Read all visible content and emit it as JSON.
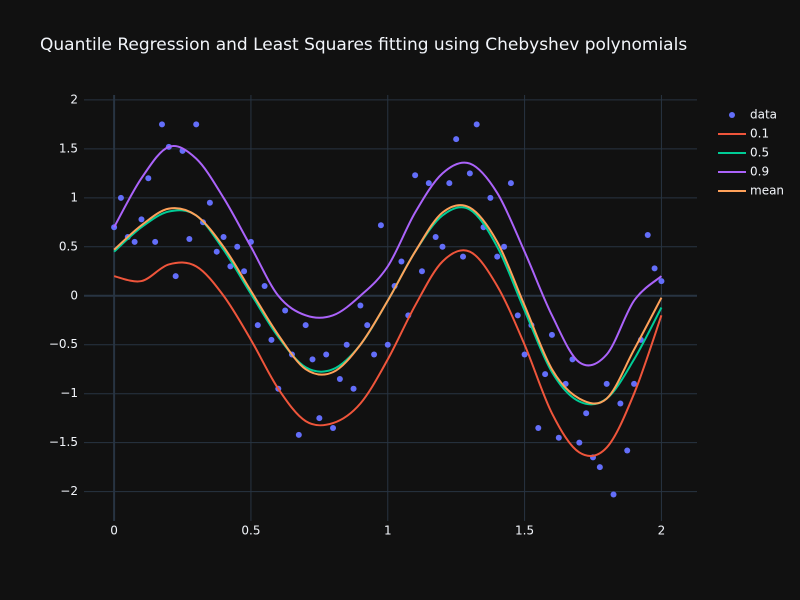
{
  "chart_data": {
    "type": "scatter",
    "title": "Quantile Regression and Least Squares fitting using Chebyshev polynomials",
    "xlim": [
      -0.11,
      2.13
    ],
    "ylim": [
      -2.3,
      2.05
    ],
    "xticks": [
      0,
      0.5,
      1,
      1.5,
      2
    ],
    "yticks": [
      {
        "value": -2,
        "label": "−2"
      },
      {
        "value": -1.5,
        "label": "−1.5"
      },
      {
        "value": -1,
        "label": "−1"
      },
      {
        "value": -0.5,
        "label": "−0.5"
      },
      0,
      0.5,
      1,
      1.5,
      2
    ],
    "grid": true,
    "legend": "outside-right",
    "series": [
      {
        "name": "data",
        "mode": "markers",
        "color": "#636efa",
        "x": [
          0,
          0.025,
          0.05,
          0.075,
          0.1,
          0.125,
          0.15,
          0.175,
          0.2,
          0.225,
          0.25,
          0.275,
          0.3,
          0.325,
          0.35,
          0.375,
          0.4,
          0.425,
          0.45,
          0.475,
          0.5,
          0.525,
          0.55,
          0.575,
          0.6,
          0.625,
          0.65,
          0.675,
          0.7,
          0.725,
          0.75,
          0.775,
          0.8,
          0.825,
          0.85,
          0.875,
          0.9,
          0.925,
          0.95,
          0.975,
          1,
          1.025,
          1.05,
          1.075,
          1.1,
          1.125,
          1.15,
          1.175,
          1.2,
          1.225,
          1.25,
          1.275,
          1.3,
          1.325,
          1.35,
          1.375,
          1.4,
          1.425,
          1.45,
          1.475,
          1.5,
          1.525,
          1.55,
          1.575,
          1.6,
          1.625,
          1.65,
          1.675,
          1.7,
          1.725,
          1.75,
          1.775,
          1.8,
          1.825,
          1.85,
          1.875,
          1.9,
          1.925,
          1.95,
          1.975,
          2
        ],
        "y": [
          0.7,
          1.0,
          0.6,
          0.55,
          0.78,
          1.2,
          0.55,
          1.75,
          1.52,
          0.2,
          1.48,
          0.58,
          1.75,
          0.75,
          0.95,
          0.45,
          0.6,
          0.3,
          0.5,
          0.25,
          0.55,
          -0.3,
          0.1,
          -0.45,
          -0.95,
          -0.15,
          -0.6,
          -1.42,
          -0.3,
          -0.65,
          -1.25,
          -0.6,
          -1.35,
          -0.85,
          -0.5,
          -0.95,
          -0.1,
          -0.3,
          -0.6,
          0.72,
          -0.5,
          0.1,
          0.35,
          -0.2,
          1.23,
          0.25,
          1.15,
          0.6,
          0.5,
          1.15,
          1.6,
          0.4,
          1.25,
          1.75,
          0.7,
          1.0,
          0.4,
          0.5,
          1.15,
          -0.2,
          -0.6,
          -0.3,
          -1.35,
          -0.8,
          -0.4,
          -1.45,
          -0.9,
          -0.65,
          -1.5,
          -1.2,
          -1.65,
          -1.75,
          -0.9,
          -2.03,
          -1.1,
          -1.58,
          -0.9,
          -0.45,
          0.62,
          0.28,
          0.15
        ]
      },
      {
        "name": "0.1",
        "mode": "lines",
        "color": "#EF553B",
        "x": [
          0,
          0.1,
          0.2,
          0.3,
          0.4,
          0.5,
          0.6,
          0.7,
          0.8,
          0.9,
          1,
          1.1,
          1.2,
          1.3,
          1.4,
          1.5,
          1.6,
          1.7,
          1.8,
          1.9,
          2
        ],
        "y": [
          0.2,
          0.15,
          0.32,
          0.3,
          0.0,
          -0.45,
          -0.95,
          -1.28,
          -1.3,
          -1.1,
          -0.65,
          -0.1,
          0.35,
          0.45,
          0.1,
          -0.5,
          -1.2,
          -1.6,
          -1.55,
          -1.0,
          -0.2
        ]
      },
      {
        "name": "0.5",
        "mode": "lines",
        "color": "#00cc96",
        "x": [
          0,
          0.1,
          0.2,
          0.3,
          0.4,
          0.5,
          0.6,
          0.7,
          0.8,
          0.9,
          1,
          1.1,
          1.2,
          1.3,
          1.4,
          1.5,
          1.6,
          1.7,
          1.8,
          1.9,
          2
        ],
        "y": [
          0.45,
          0.7,
          0.86,
          0.82,
          0.47,
          0.02,
          -0.42,
          -0.73,
          -0.75,
          -0.5,
          -0.05,
          0.45,
          0.82,
          0.88,
          0.5,
          -0.15,
          -0.78,
          -1.08,
          -1.05,
          -0.65,
          -0.12
        ]
      },
      {
        "name": "0.9",
        "mode": "lines",
        "color": "#ab63fa",
        "x": [
          0,
          0.1,
          0.2,
          0.3,
          0.4,
          0.5,
          0.6,
          0.7,
          0.8,
          0.9,
          1,
          1.1,
          1.2,
          1.3,
          1.4,
          1.5,
          1.6,
          1.7,
          1.8,
          1.9,
          2
        ],
        "y": [
          0.7,
          1.2,
          1.52,
          1.4,
          1.0,
          0.5,
          0.0,
          -0.2,
          -0.2,
          0.0,
          0.3,
          0.85,
          1.25,
          1.35,
          1.05,
          0.45,
          -0.2,
          -0.68,
          -0.6,
          -0.05,
          0.2
        ]
      },
      {
        "name": "mean",
        "mode": "lines",
        "color": "#FFA15A",
        "x": [
          0,
          0.1,
          0.2,
          0.3,
          0.4,
          0.5,
          0.6,
          0.7,
          0.8,
          0.9,
          1,
          1.1,
          1.2,
          1.3,
          1.4,
          1.5,
          1.6,
          1.7,
          1.8,
          1.9,
          2
        ],
        "y": [
          0.47,
          0.72,
          0.89,
          0.82,
          0.5,
          0.05,
          -0.4,
          -0.75,
          -0.78,
          -0.5,
          -0.05,
          0.45,
          0.85,
          0.9,
          0.55,
          -0.1,
          -0.75,
          -1.05,
          -1.05,
          -0.55,
          -0.02
        ]
      }
    ]
  }
}
